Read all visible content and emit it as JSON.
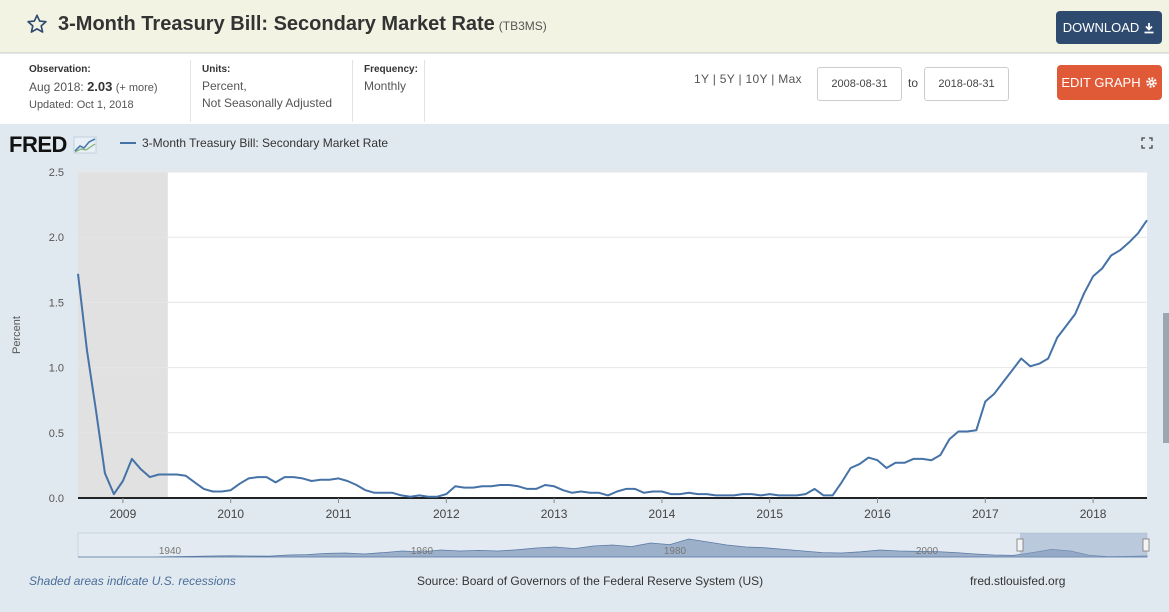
{
  "header": {
    "title": "3-Month Treasury Bill: Secondary Market Rate",
    "series_id": "(TB3MS)",
    "download_label": "DOWNLOAD"
  },
  "meta": {
    "observation_label": "Observation:",
    "observation_date": "Aug 2018:",
    "observation_value": "2.03",
    "observation_more": "(+ more)",
    "updated": "Updated: Oct 1, 2018",
    "units_label": "Units:",
    "units_line1": "Percent,",
    "units_line2": "Not Seasonally Adjusted",
    "frequency_label": "Frequency:",
    "frequency_value": "Monthly",
    "range_1y": "1Y",
    "range_5y": "5Y",
    "range_10y": "10Y",
    "range_max": "Max",
    "range_sep": "|",
    "start_date": "2008-08-31",
    "to_label": "to",
    "end_date": "2018-08-31",
    "edit_label": "EDIT GRAPH"
  },
  "chart": {
    "logo": "FRED",
    "legend_label": "3-Month Treasury Bill: Secondary Market Rate",
    "footer_recession": "Shaded areas indicate U.S. recessions",
    "footer_source": "Source: Board of Governors of the Federal Reserve System (US)",
    "footer_url": "fred.stlouisfed.org",
    "line_color": "#4572a7",
    "recession_color": "#e1e1e1"
  },
  "chart_data": {
    "type": "line",
    "title": "",
    "ylabel": "Percent",
    "ylim": [
      0,
      2.5
    ],
    "yticks": [
      "0.0",
      "0.5",
      "1.0",
      "1.5",
      "2.0",
      "2.5"
    ],
    "xticks": [
      "2009",
      "2010",
      "2011",
      "2012",
      "2013",
      "2014",
      "2015",
      "2016",
      "2017",
      "2018"
    ],
    "recession": {
      "start": "2008-08",
      "end": "2009-06"
    },
    "navigator_labels": [
      "1940",
      "1960",
      "1980",
      "2000"
    ],
    "grid": true,
    "series": [
      {
        "name": "3-Month Treasury Bill: Secondary Market Rate",
        "start": "2008-08",
        "values": [
          1.72,
          1.13,
          0.67,
          0.19,
          0.03,
          0.13,
          0.3,
          0.22,
          0.16,
          0.18,
          0.18,
          0.18,
          0.17,
          0.12,
          0.07,
          0.05,
          0.05,
          0.06,
          0.11,
          0.15,
          0.16,
          0.16,
          0.12,
          0.16,
          0.16,
          0.15,
          0.13,
          0.14,
          0.14,
          0.15,
          0.13,
          0.1,
          0.06,
          0.04,
          0.04,
          0.04,
          0.02,
          0.01,
          0.02,
          0.01,
          0.01,
          0.03,
          0.09,
          0.08,
          0.08,
          0.09,
          0.09,
          0.1,
          0.1,
          0.09,
          0.07,
          0.07,
          0.1,
          0.09,
          0.06,
          0.04,
          0.05,
          0.04,
          0.04,
          0.02,
          0.05,
          0.07,
          0.07,
          0.04,
          0.05,
          0.05,
          0.03,
          0.03,
          0.04,
          0.03,
          0.03,
          0.02,
          0.02,
          0.02,
          0.03,
          0.03,
          0.02,
          0.03,
          0.02,
          0.02,
          0.02,
          0.03,
          0.07,
          0.02,
          0.02,
          0.12,
          0.23,
          0.26,
          0.31,
          0.29,
          0.23,
          0.27,
          0.27,
          0.3,
          0.3,
          0.29,
          0.33,
          0.45,
          0.51,
          0.51,
          0.52,
          0.74,
          0.8,
          0.89,
          0.98,
          1.07,
          1.01,
          1.03,
          1.07,
          1.23,
          1.32,
          1.41,
          1.57,
          1.7,
          1.76,
          1.86,
          1.9,
          1.96,
          2.03,
          2.13
        ]
      }
    ]
  }
}
